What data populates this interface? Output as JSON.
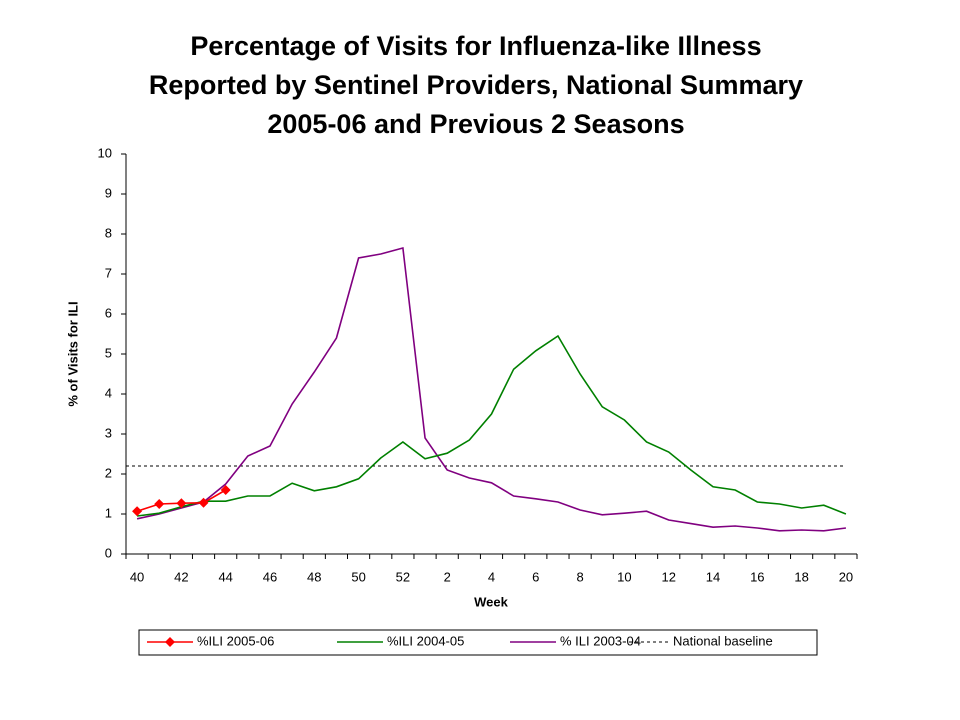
{
  "chart_data": {
    "type": "line",
    "title": [
      "Percentage of Visits for Influenza-like Illness",
      "Reported by Sentinel Providers, National Summary",
      "2005-06 and Previous 2 Seasons"
    ],
    "x_label": "Week",
    "y_label": "% of Visits for ILI",
    "categories": [
      "40",
      null,
      "42",
      null,
      "44",
      null,
      "46",
      null,
      "48",
      null,
      "50",
      null,
      "52",
      null,
      "2",
      null,
      "4",
      null,
      "6",
      null,
      "8",
      null,
      "10",
      null,
      "12",
      null,
      "14",
      null,
      "16",
      null,
      "18",
      null,
      "20"
    ],
    "ylim": [
      0,
      10
    ],
    "yticks": [
      0,
      1,
      2,
      3,
      4,
      5,
      6,
      7,
      8,
      9,
      10
    ],
    "series": [
      {
        "name": "%ILI 2005-06",
        "color": "#ff0000",
        "marker": "diamond",
        "values": [
          1.07,
          1.25,
          1.27,
          1.28,
          1.6,
          null,
          null,
          null,
          null,
          null,
          null,
          null,
          null,
          null,
          null,
          null,
          null,
          null,
          null,
          null,
          null,
          null,
          null,
          null,
          null,
          null,
          null,
          null,
          null,
          null,
          null,
          null,
          null
        ]
      },
      {
        "name": "%ILI 2004-05",
        "color": "#008000",
        "values": [
          0.95,
          1.02,
          1.18,
          1.32,
          1.32,
          1.45,
          1.45,
          1.77,
          1.58,
          1.68,
          1.88,
          2.4,
          2.8,
          2.38,
          2.52,
          2.85,
          3.5,
          4.62,
          5.08,
          5.45,
          4.5,
          3.68,
          3.35,
          2.8,
          2.55,
          2.1,
          1.68,
          1.6,
          1.3,
          1.25,
          1.15,
          1.22,
          1.0
        ]
      },
      {
        "name": "% ILI 2003-04",
        "color": "#800080",
        "values": [
          0.88,
          1.0,
          1.15,
          1.3,
          1.75,
          2.45,
          2.7,
          3.75,
          4.55,
          5.4,
          7.4,
          7.5,
          7.65,
          2.9,
          2.1,
          1.9,
          1.78,
          1.45,
          1.38,
          1.3,
          1.1,
          0.98,
          1.02,
          1.07,
          0.85,
          0.76,
          0.67,
          0.7,
          0.65,
          0.58,
          0.6,
          0.58,
          0.65
        ]
      }
    ],
    "baseline": {
      "name": "National baseline",
      "value": 2.2,
      "color": "#000000"
    }
  }
}
